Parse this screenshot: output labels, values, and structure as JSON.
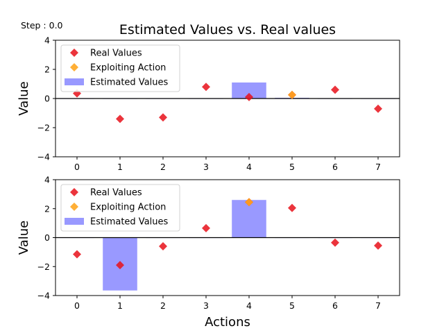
{
  "step_label": "Step : 0.0",
  "chart_data": [
    {
      "type": "bar+scatter",
      "title": "Estimated Values vs. Real values",
      "xlabel": "",
      "ylabel": "Value",
      "categories": [
        "0",
        "1",
        "2",
        "3",
        "4",
        "5",
        "6",
        "7"
      ],
      "xlim": [
        -0.5,
        7.5
      ],
      "ylim": [
        -4,
        4
      ],
      "yticks": [
        "4",
        "2",
        "0",
        "−2",
        "−4"
      ],
      "grid": false,
      "legend_position": "top-left",
      "legend": [
        "Real Values",
        "Exploiting Action",
        "Estimated Values"
      ],
      "estimated_values": [
        0,
        0,
        0,
        0,
        1.1,
        0.05,
        0,
        0
      ],
      "real_values": [
        0.35,
        -1.4,
        -1.3,
        0.8,
        0.1,
        0.25,
        0.6,
        -0.7
      ],
      "exploiting_action": 5,
      "exploiting_value": 0.25,
      "colors": {
        "real": "#e8101a",
        "exploit": "#ffa620",
        "estimated": "#9999ff"
      }
    },
    {
      "type": "bar+scatter",
      "title": "",
      "xlabel": "Actions",
      "ylabel": "Value",
      "categories": [
        "0",
        "1",
        "2",
        "3",
        "4",
        "5",
        "6",
        "7"
      ],
      "xlim": [
        -0.5,
        7.5
      ],
      "ylim": [
        -4,
        4
      ],
      "yticks": [
        "4",
        "2",
        "0",
        "−2",
        "−4"
      ],
      "grid": false,
      "legend_position": "top-left",
      "legend": [
        "Real Values",
        "Exploiting Action",
        "Estimated Values"
      ],
      "estimated_values": [
        0,
        -3.65,
        0,
        0,
        2.6,
        0,
        0,
        0
      ],
      "real_values": [
        -1.15,
        -1.9,
        -0.6,
        0.65,
        2.45,
        2.05,
        -0.35,
        -0.55
      ],
      "exploiting_action": 4,
      "exploiting_value": 2.45,
      "colors": {
        "real": "#e8101a",
        "exploit": "#ffa620",
        "estimated": "#9999ff"
      }
    }
  ]
}
